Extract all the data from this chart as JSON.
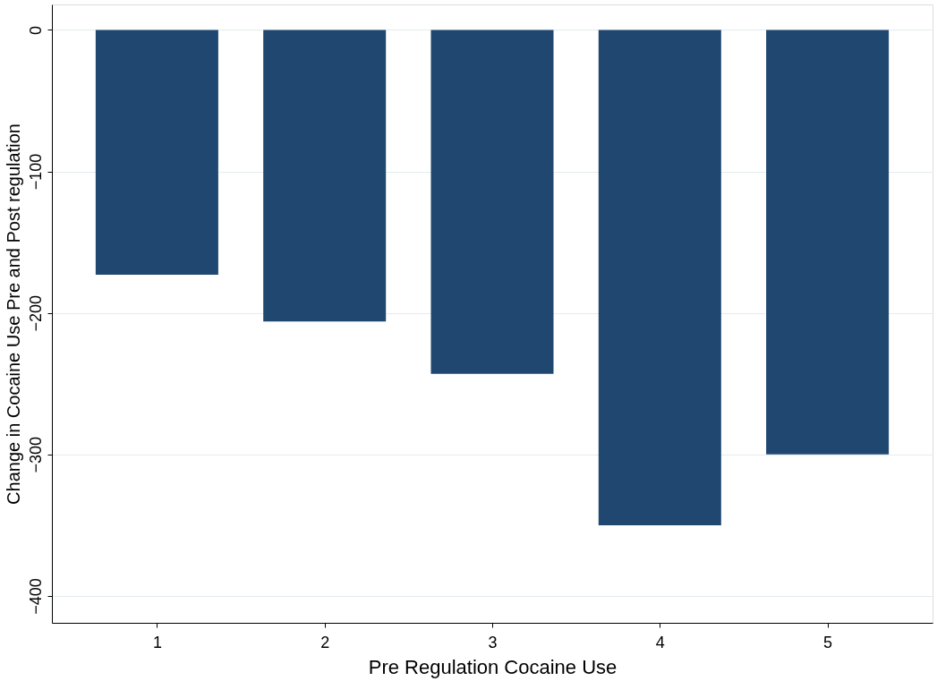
{
  "chart_data": {
    "type": "bar",
    "xlabel": "Pre Regulation Cocaine Use",
    "ylabel": "Change in Cocaine Use Pre and Post regulation",
    "categories": [
      "1",
      "2",
      "3",
      "4",
      "5"
    ],
    "values": [
      -173,
      -206,
      -243,
      -350,
      -300
    ],
    "color": "#1f476f",
    "ylim": [
      -419,
      18
    ],
    "yticks": [
      0,
      -100,
      -200,
      -300,
      -400
    ],
    "grid": "y"
  }
}
